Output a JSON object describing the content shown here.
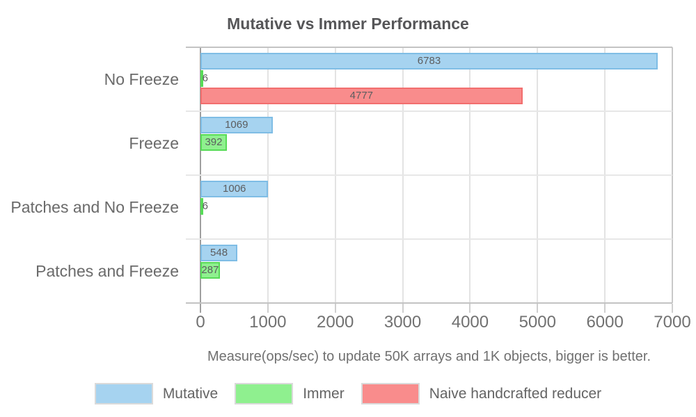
{
  "chart_data": {
    "type": "bar",
    "orientation": "horizontal",
    "title": "Mutative vs Immer Performance",
    "subtitle": "Measure(ops/sec) to update 50K arrays and 1K objects, bigger is better.",
    "categories": [
      "No Freeze",
      "Freeze",
      "Patches and No Freeze",
      "Patches and Freeze"
    ],
    "series": [
      {
        "name": "Mutative",
        "fill": "#a6d3f0",
        "border": "#7fbde5",
        "values": [
          6783,
          1069,
          1006,
          548
        ]
      },
      {
        "name": "Immer",
        "fill": "#8ff08f",
        "border": "#57db57",
        "values": [
          6,
          392,
          6,
          287
        ]
      },
      {
        "name": "Naive handcrafted reducer",
        "fill": "#f98c8c",
        "border": "#f26e6e",
        "values": [
          4777,
          null,
          null,
          null
        ]
      }
    ],
    "xlim": [
      0,
      7000
    ],
    "xticks": [
      0,
      1000,
      2000,
      3000,
      4000,
      5000,
      6000,
      7000
    ],
    "grid": true,
    "bar_value_labels": true,
    "legend_position": "bottom",
    "background_color": "#ffffff"
  }
}
